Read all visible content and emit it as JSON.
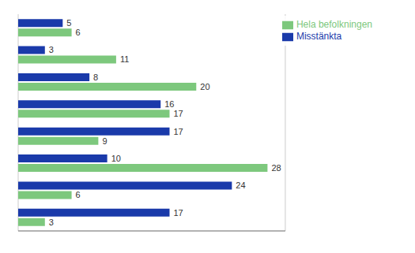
{
  "chart_data": {
    "type": "bar",
    "orientation": "horizontal",
    "categories": [
      null,
      null,
      null,
      null,
      null,
      null,
      null,
      null
    ],
    "series": [
      {
        "name": "Misstänkta",
        "color": "#1a3aaa",
        "values": [
          5,
          3,
          8,
          16,
          17,
          10,
          24,
          17
        ]
      },
      {
        "name": "Hela befolkningen",
        "color": "#7dc87d",
        "values": [
          6,
          11,
          20,
          17,
          9,
          28,
          6,
          3
        ]
      }
    ],
    "xlim": [
      0,
      30
    ],
    "xticks": [
      0,
      5,
      10,
      15,
      20,
      25,
      30
    ],
    "grid": true,
    "legend": "upper right",
    "data_labels": true,
    "tick_labels": false
  }
}
